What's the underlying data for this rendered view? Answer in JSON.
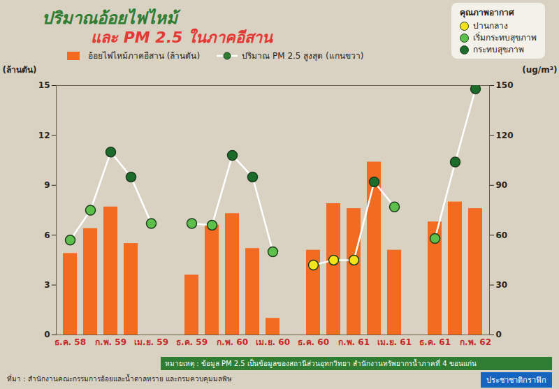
{
  "chart_data": {
    "type": "bar",
    "title": "ปริมาณอ้อยไฟไหม้",
    "subtitle": "และ PM 2.5 ในภาคอีสาน",
    "categories": [
      "ธ.ค. 58",
      null,
      "ก.พ. 59",
      null,
      "เม.ย. 59",
      null,
      "ธ.ค. 59",
      null,
      "ก.พ. 60",
      null,
      "เม.ย. 60",
      null,
      "ธ.ค. 60",
      null,
      "ก.พ. 61",
      null,
      "เม.ย. 61",
      null,
      "ธ.ค. 61",
      null,
      "ก.พ. 62"
    ],
    "series": [
      {
        "name": "อ้อยไฟไหม้ภาคอีสาน (ล้านตัน)",
        "type": "bar",
        "color": "#f26b21",
        "values": [
          4.9,
          6.4,
          7.7,
          5.5,
          null,
          null,
          3.6,
          6.6,
          7.3,
          5.2,
          1.0,
          null,
          5.1,
          7.9,
          7.6,
          10.4,
          5.1,
          null,
          6.8,
          8.0,
          7.6
        ]
      },
      {
        "name": "ปริมาณ PM 2.5 สูงสุด (แกนขวา)",
        "type": "line",
        "axis": "y2",
        "color": "#ffffff",
        "marker": "circle",
        "values": [
          57,
          75,
          110,
          95,
          67,
          null,
          67,
          66,
          108,
          95,
          50,
          null,
          42,
          45,
          45,
          92,
          77,
          null,
          58,
          104,
          148
        ],
        "quality": [
          "เริ่มกระทบสุขภาพ",
          "เริ่มกระทบสุขภาพ",
          "กระทบสุขภาพ",
          "กระทบสุขภาพ",
          "เริ่มกระทบสุขภาพ",
          null,
          "เริ่มกระทบสุขภาพ",
          "เริ่มกระทบสุขภาพ",
          "กระทบสุขภาพ",
          "กระทบสุขภาพ",
          "เริ่มกระทบสุขภาพ",
          null,
          "ปานกลาง",
          "ปานกลาง",
          "ปานกลาง",
          "กระทบสุขภาพ",
          "เริ่มกระทบสุขภาพ",
          null,
          "เริ่มกระทบสุขภาพ",
          "กระทบสุขภาพ",
          "กระทบสุขภาพ"
        ]
      }
    ],
    "y_label": "(ล้านตัน)",
    "y2_label": "(ug/m³)",
    "ylim": [
      0,
      15
    ],
    "yticks": [
      0,
      3,
      6,
      9,
      12,
      15
    ],
    "y2lim": [
      0,
      150
    ],
    "y2ticks": [
      0,
      30,
      60,
      90,
      120,
      150
    ],
    "grid": false,
    "quality_legend": {
      "title": "คุณภาพอากาศ",
      "items": [
        {
          "name": "ปานกลาง",
          "color": "#f2e31b"
        },
        {
          "name": "เริ่มกระทบสุขภาพ",
          "color": "#5cc04a"
        },
        {
          "name": "กระทบสุขภาพ",
          "color": "#1b6b2a"
        }
      ]
    },
    "note": "หมายเหตุ : ข้อมูล PM 2.5 เป็นข้อมูลของสถานีส่วนอุทกวิทยา สำนักงานทรัพยากรน้ำภาคที่ 4 ขอนแก่น",
    "source": "ที่มา : สำนักงานคณะกรรมการอ้อยและน้ำตาลทราย และกรมควบคุมมลพิษ",
    "credit": "ประชาชาติกราฟิก"
  }
}
